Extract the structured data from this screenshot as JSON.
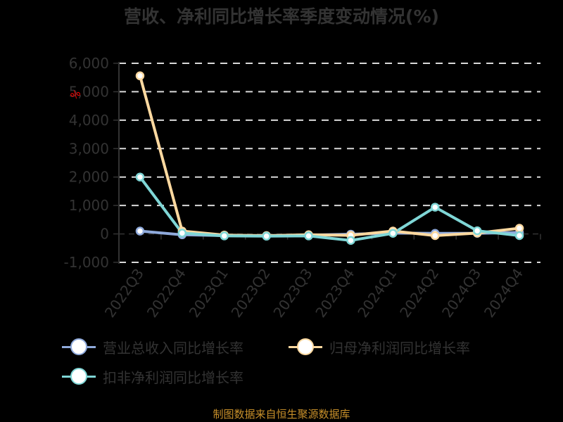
{
  "title": "营收、净利同比增长率季度变动情况(%)",
  "source": "制图数据来自恒生聚源数据库",
  "colors": {
    "background": "#000000",
    "revenue": "#8faadc",
    "net_profit": "#ffd9a0",
    "deducted_net_profit": "#7fd6d6",
    "gridline": "#d9d9d9",
    "axis": "#333333",
    "text": "#333333",
    "source": "#c8902a"
  },
  "legend": [
    {
      "label": "营业总收入同比增长率",
      "color": "#8faadc"
    },
    {
      "label": "归母净利润同比增长率",
      "color": "#ffd9a0"
    },
    {
      "label": "扣非净利润同比增长率",
      "color": "#7fd6d6"
    }
  ],
  "chart_data": {
    "type": "line",
    "title": "营收、净利同比增长率季度变动情况(%)",
    "xlabel": "",
    "ylabel": "%",
    "categories": [
      "2022Q3",
      "2022Q4",
      "2023Q1",
      "2023Q2",
      "2023Q3",
      "2023Q4",
      "2024Q1",
      "2024Q2",
      "2024Q3",
      "2024Q4"
    ],
    "yticks": [
      -1000,
      0,
      1000,
      2000,
      3000,
      4000,
      5000,
      6000
    ],
    "ytick_labels": [
      "-1,000",
      "0",
      "1,000",
      "2,000",
      "3,000",
      "4,000",
      "5,000",
      "6,000"
    ],
    "ylim": [
      -1000,
      6000
    ],
    "grid": true,
    "legend_position": "bottom",
    "series": [
      {
        "name": "营业总收入同比增长率",
        "color": "#8faadc",
        "values": [
          100,
          -30,
          -60,
          -60,
          -40,
          -10,
          30,
          20,
          20,
          50
        ]
      },
      {
        "name": "归母净利润同比增长率",
        "color": "#ffd9a0",
        "values": [
          5560,
          100,
          -40,
          -60,
          -30,
          -50,
          100,
          -60,
          30,
          200
        ]
      },
      {
        "name": "扣非净利润同比增长率",
        "color": "#7fd6d6",
        "values": [
          2000,
          30,
          -70,
          -80,
          -70,
          -230,
          20,
          940,
          110,
          -60
        ]
      }
    ]
  }
}
